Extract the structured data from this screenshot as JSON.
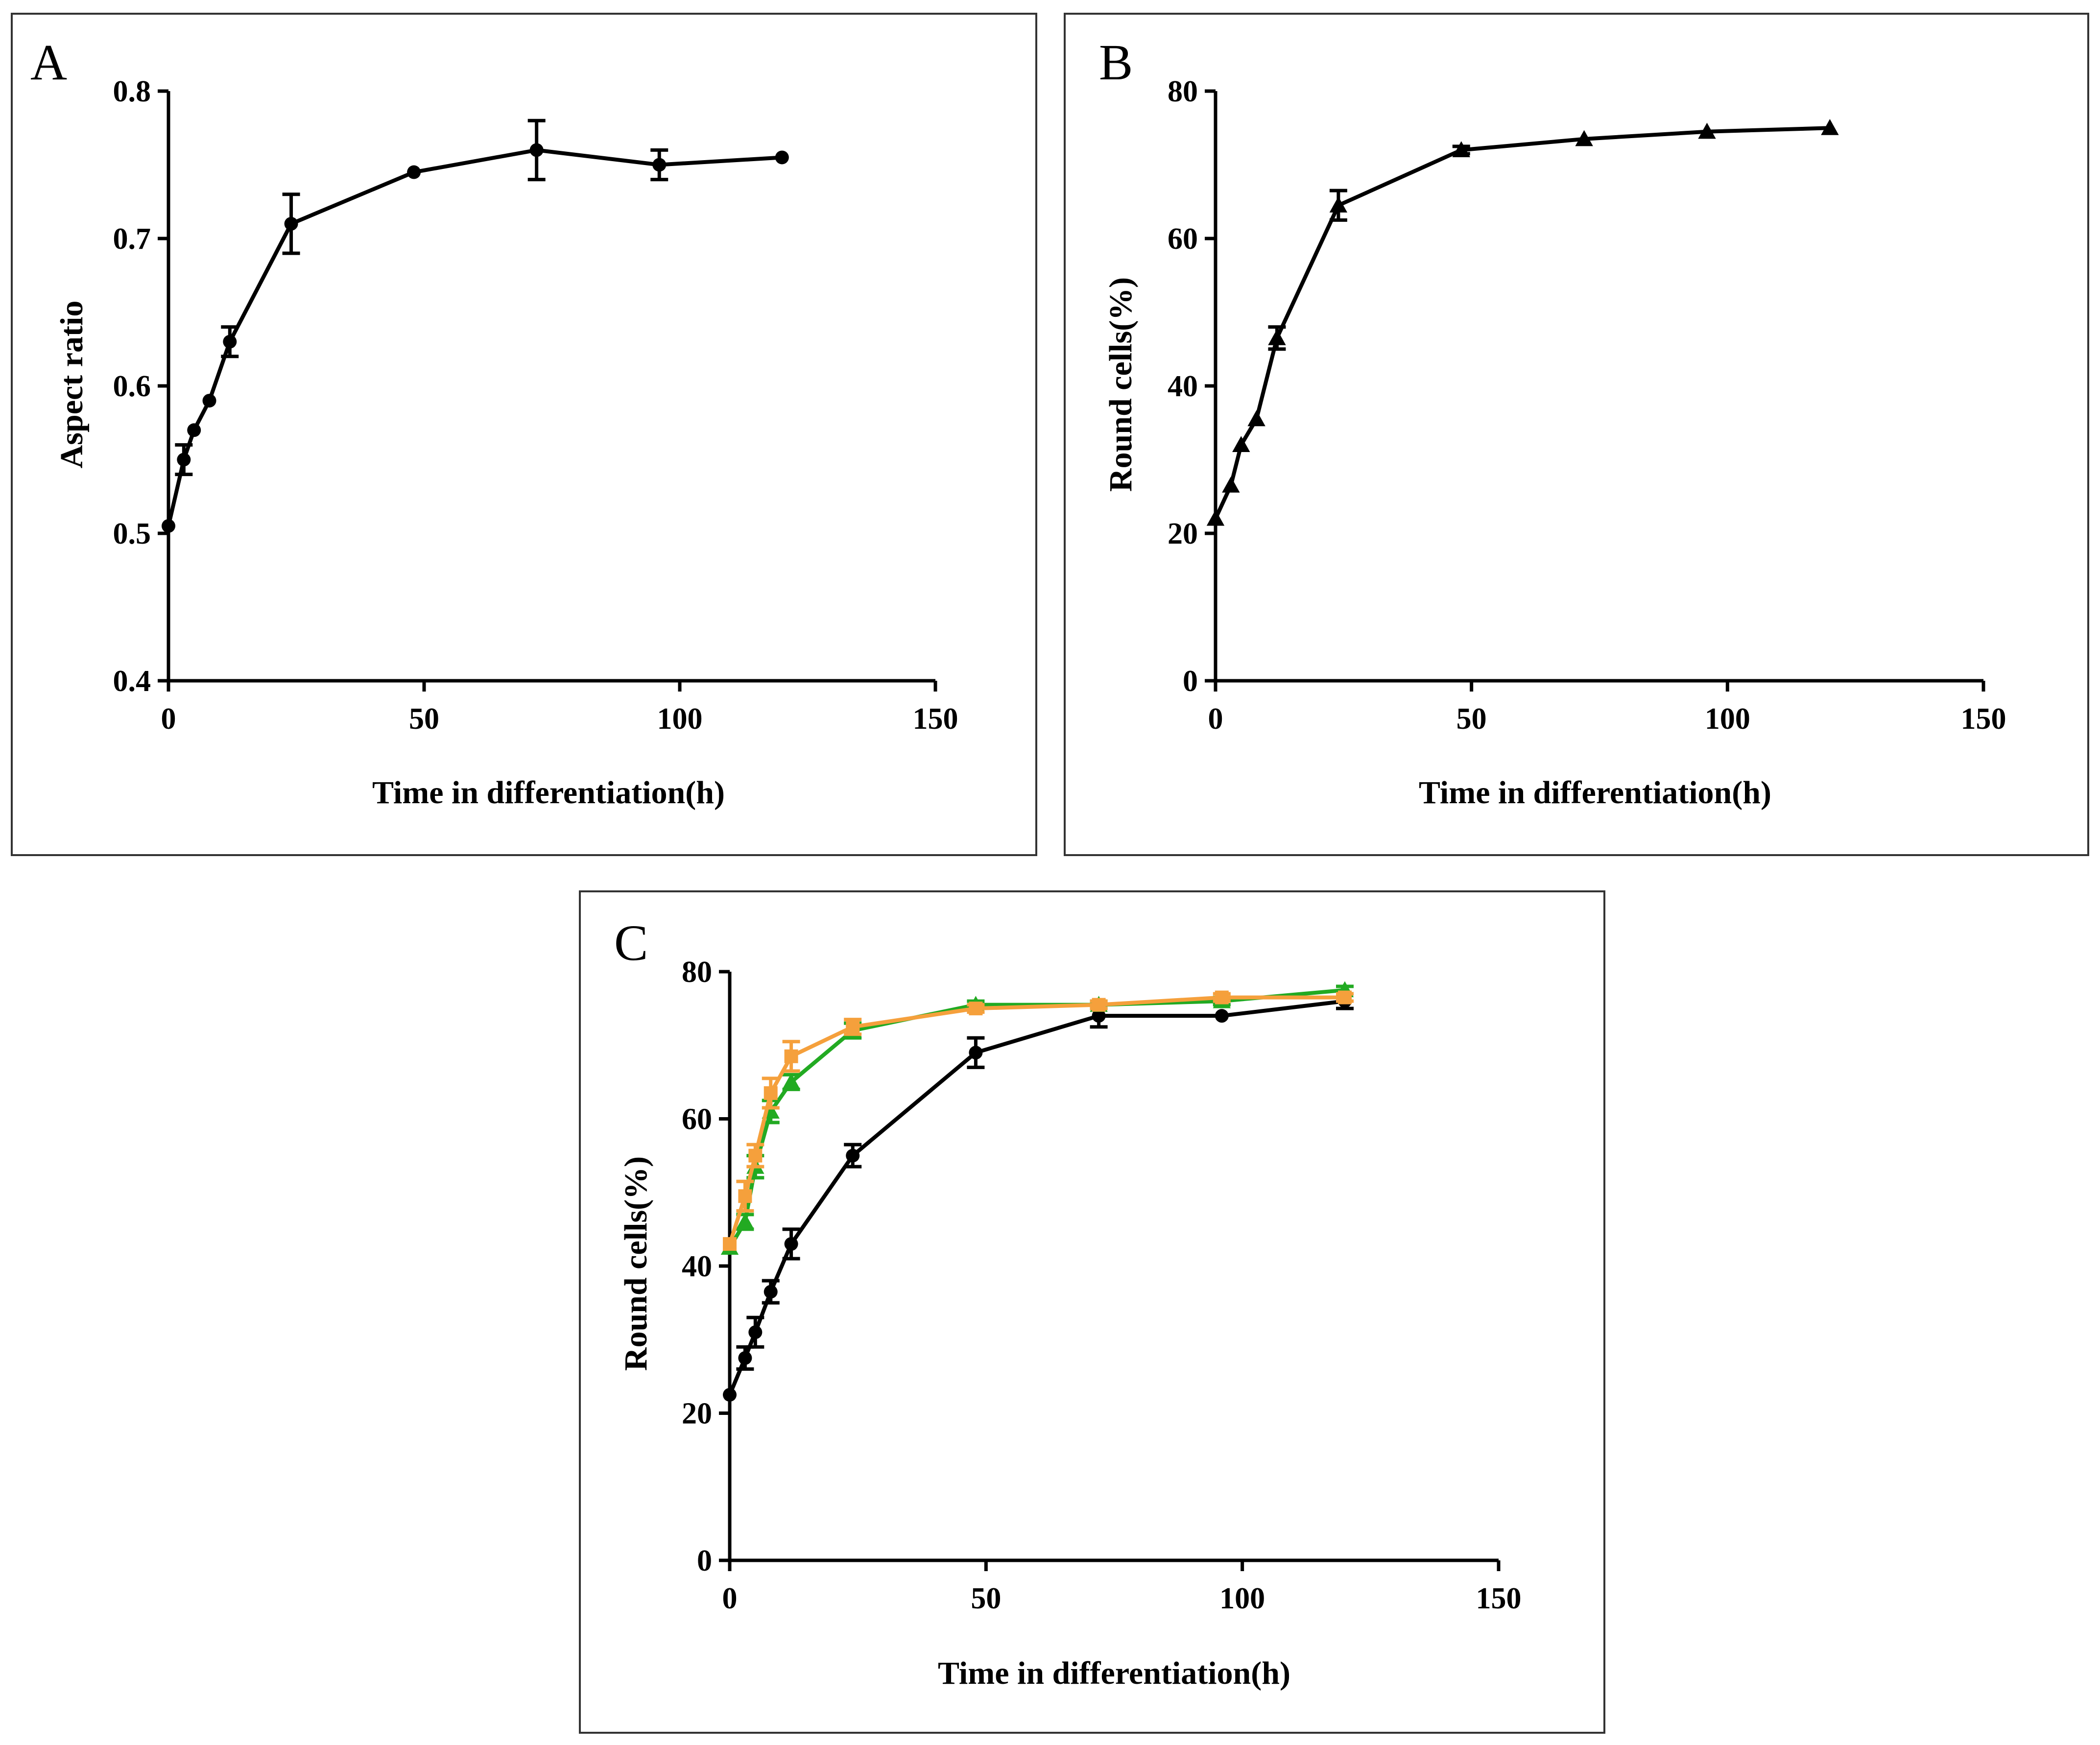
{
  "chart_data": [
    {
      "panel": "A",
      "type": "line",
      "xlabel": "Time in differentiation(h)",
      "ylabel": "Aspect ratio",
      "xlim": [
        0,
        150
      ],
      "ylim": [
        0.4,
        0.8
      ],
      "xticks": [
        "0",
        "50",
        "100",
        "150"
      ],
      "yticks": [
        "0.4",
        "0.5",
        "0.6",
        "0.7",
        "0.8"
      ],
      "series": [
        {
          "name": "aspect-ratio",
          "color": "#000000",
          "marker": "circle",
          "x": [
            0,
            3,
            5,
            8,
            12,
            24,
            48,
            72,
            96,
            120
          ],
          "y": [
            0.505,
            0.55,
            0.57,
            0.59,
            0.63,
            0.71,
            0.745,
            0.76,
            0.75,
            0.755
          ],
          "err": [
            0,
            0.01,
            0,
            0,
            0.01,
            0.02,
            0,
            0.02,
            0.01,
            0
          ]
        }
      ]
    },
    {
      "panel": "B",
      "type": "line",
      "xlabel": "Time in differentiation(h)",
      "ylabel": "Round cells(%)",
      "xlim": [
        0,
        150
      ],
      "ylim": [
        0,
        80
      ],
      "xticks": [
        "0",
        "50",
        "100",
        "150"
      ],
      "yticks": [
        "0",
        "20",
        "40",
        "60",
        "80"
      ],
      "series": [
        {
          "name": "round-cells",
          "color": "#000000",
          "marker": "triangle",
          "x": [
            0,
            3,
            5,
            8,
            12,
            24,
            48,
            72,
            96,
            120
          ],
          "y": [
            22,
            26.5,
            32,
            35.5,
            46.5,
            64.5,
            72,
            73.5,
            74.5,
            75
          ],
          "err": [
            0,
            0,
            0,
            0,
            1.5,
            2,
            0.5,
            0,
            0,
            0
          ]
        }
      ]
    },
    {
      "panel": "C",
      "type": "line",
      "xlabel": "Time in differentiation(h)",
      "ylabel": "Round cells(%)",
      "xlim": [
        0,
        150
      ],
      "ylim": [
        0,
        80
      ],
      "xticks": [
        "0",
        "50",
        "100",
        "150"
      ],
      "yticks": [
        "0",
        "20",
        "40",
        "60",
        "80"
      ],
      "series": [
        {
          "name": "black",
          "color": "#000000",
          "marker": "circle",
          "x": [
            0,
            3,
            5,
            8,
            12,
            24,
            48,
            72,
            96,
            120
          ],
          "y": [
            22.5,
            27.5,
            31,
            36.5,
            43,
            55,
            69,
            74,
            74,
            76
          ],
          "err": [
            0,
            1.5,
            2,
            1.5,
            2,
            1.5,
            2,
            1.5,
            0,
            1
          ]
        },
        {
          "name": "green",
          "color": "#22aa22",
          "marker": "triangle",
          "x": [
            0,
            3,
            5,
            8,
            12,
            24,
            48,
            72,
            96,
            120
          ],
          "y": [
            42.5,
            46,
            53.5,
            61,
            65,
            72,
            75.5,
            75.5,
            76,
            77.5
          ],
          "err": [
            0,
            1,
            1.5,
            1.5,
            1,
            1,
            0.5,
            0.5,
            0.5,
            0.5
          ]
        },
        {
          "name": "orange",
          "color": "#f5a03c",
          "marker": "square",
          "x": [
            0,
            3,
            5,
            8,
            12,
            24,
            48,
            72,
            96,
            120
          ],
          "y": [
            43,
            49.5,
            55,
            63.5,
            68.5,
            72.5,
            75,
            75.5,
            76.5,
            76.5
          ],
          "err": [
            0,
            2,
            1.5,
            2,
            2,
            1,
            0.5,
            0.5,
            0.5,
            0.5
          ]
        }
      ]
    }
  ]
}
